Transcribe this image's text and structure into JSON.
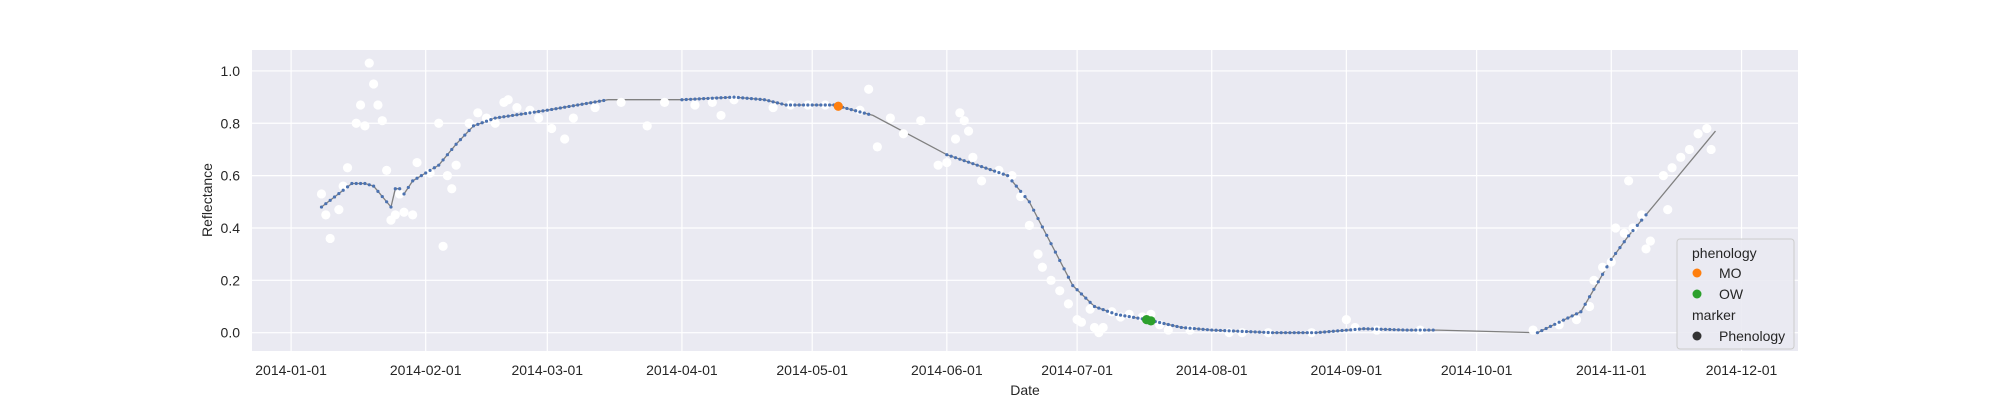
{
  "chart_data": {
    "type": "scatter",
    "xlabel": "Date",
    "ylabel": "Reflectance",
    "xlim": [
      "2013-12-23",
      "2014-12-14"
    ],
    "ylim": [
      -0.07,
      1.08
    ],
    "grid": true,
    "x_ticks": [
      "2014-01-01",
      "2014-02-01",
      "2014-03-01",
      "2014-04-01",
      "2014-05-01",
      "2014-06-01",
      "2014-07-01",
      "2014-08-01",
      "2014-09-01",
      "2014-10-01",
      "2014-11-01",
      "2014-12-01"
    ],
    "y_ticks": [
      "0.0",
      "0.2",
      "0.4",
      "0.6",
      "0.8",
      "1.0"
    ],
    "colors": {
      "plot_background": "#eaeaf2",
      "grid": "#ffffff",
      "observations": "#ffffff",
      "fit_line": "#808080",
      "fit_points": "#4c72b0",
      "MO": "#ff7f0e",
      "OW": "#2ca02c",
      "marker_legend": "#333333"
    },
    "legend": {
      "position": "lower-right",
      "phenology_title": "phenology",
      "marker_title": "marker",
      "entries": [
        {
          "label": "MO",
          "color": "#ff7f0e"
        },
        {
          "label": "OW",
          "color": "#2ca02c"
        },
        {
          "label": "Phenology",
          "color": "#333333"
        }
      ]
    },
    "observations": [
      {
        "x": "2014-01-08",
        "y": 0.53
      },
      {
        "x": "2014-01-09",
        "y": 0.45
      },
      {
        "x": "2014-01-10",
        "y": 0.36
      },
      {
        "x": "2014-01-12",
        "y": 0.47
      },
      {
        "x": "2014-01-13",
        "y": 0.56
      },
      {
        "x": "2014-01-14",
        "y": 0.63
      },
      {
        "x": "2014-01-16",
        "y": 0.8
      },
      {
        "x": "2014-01-17",
        "y": 0.87
      },
      {
        "x": "2014-01-18",
        "y": 0.79
      },
      {
        "x": "2014-01-19",
        "y": 1.03
      },
      {
        "x": "2014-01-20",
        "y": 0.95
      },
      {
        "x": "2014-01-21",
        "y": 0.87
      },
      {
        "x": "2014-01-22",
        "y": 0.81
      },
      {
        "x": "2014-01-23",
        "y": 0.62
      },
      {
        "x": "2014-01-24",
        "y": 0.43
      },
      {
        "x": "2014-01-25",
        "y": 0.45
      },
      {
        "x": "2014-01-26",
        "y": 0.53
      },
      {
        "x": "2014-01-27",
        "y": 0.46
      },
      {
        "x": "2014-01-29",
        "y": 0.45
      },
      {
        "x": "2014-01-30",
        "y": 0.65
      },
      {
        "x": "2014-02-02",
        "y": 0.61
      },
      {
        "x": "2014-02-04",
        "y": 0.8
      },
      {
        "x": "2014-02-05",
        "y": 0.33
      },
      {
        "x": "2014-02-06",
        "y": 0.6
      },
      {
        "x": "2014-02-07",
        "y": 0.55
      },
      {
        "x": "2014-02-08",
        "y": 0.64
      },
      {
        "x": "2014-02-11",
        "y": 0.8
      },
      {
        "x": "2014-02-13",
        "y": 0.84
      },
      {
        "x": "2014-02-15",
        "y": 0.82
      },
      {
        "x": "2014-02-17",
        "y": 0.8
      },
      {
        "x": "2014-02-19",
        "y": 0.88
      },
      {
        "x": "2014-02-20",
        "y": 0.89
      },
      {
        "x": "2014-02-22",
        "y": 0.86
      },
      {
        "x": "2014-02-25",
        "y": 0.85
      },
      {
        "x": "2014-02-27",
        "y": 0.82
      },
      {
        "x": "2014-03-02",
        "y": 0.78
      },
      {
        "x": "2014-03-05",
        "y": 0.74
      },
      {
        "x": "2014-03-07",
        "y": 0.82
      },
      {
        "x": "2014-03-12",
        "y": 0.86
      },
      {
        "x": "2014-03-18",
        "y": 0.88
      },
      {
        "x": "2014-03-24",
        "y": 0.79
      },
      {
        "x": "2014-03-28",
        "y": 0.88
      },
      {
        "x": "2014-04-04",
        "y": 0.87
      },
      {
        "x": "2014-04-08",
        "y": 0.88
      },
      {
        "x": "2014-04-10",
        "y": 0.83
      },
      {
        "x": "2014-04-13",
        "y": 0.89
      },
      {
        "x": "2014-04-22",
        "y": 0.86
      },
      {
        "x": "2014-04-26",
        "y": 0.87
      },
      {
        "x": "2014-04-30",
        "y": 0.87
      },
      {
        "x": "2014-05-04",
        "y": 0.87
      },
      {
        "x": "2014-05-12",
        "y": 0.85
      },
      {
        "x": "2014-05-14",
        "y": 0.93
      },
      {
        "x": "2014-05-16",
        "y": 0.71
      },
      {
        "x": "2014-05-19",
        "y": 0.82
      },
      {
        "x": "2014-05-22",
        "y": 0.76
      },
      {
        "x": "2014-05-26",
        "y": 0.81
      },
      {
        "x": "2014-05-30",
        "y": 0.64
      },
      {
        "x": "2014-06-01",
        "y": 0.65
      },
      {
        "x": "2014-06-03",
        "y": 0.74
      },
      {
        "x": "2014-06-04",
        "y": 0.84
      },
      {
        "x": "2014-06-05",
        "y": 0.81
      },
      {
        "x": "2014-06-06",
        "y": 0.77
      },
      {
        "x": "2014-06-07",
        "y": 0.67
      },
      {
        "x": "2014-06-09",
        "y": 0.58
      },
      {
        "x": "2014-06-13",
        "y": 0.62
      },
      {
        "x": "2014-06-16",
        "y": 0.6
      },
      {
        "x": "2014-06-18",
        "y": 0.52
      },
      {
        "x": "2014-06-20",
        "y": 0.41
      },
      {
        "x": "2014-06-22",
        "y": 0.3
      },
      {
        "x": "2014-06-23",
        "y": 0.25
      },
      {
        "x": "2014-06-25",
        "y": 0.2
      },
      {
        "x": "2014-06-27",
        "y": 0.16
      },
      {
        "x": "2014-06-29",
        "y": 0.11
      },
      {
        "x": "2014-07-01",
        "y": 0.05
      },
      {
        "x": "2014-07-02",
        "y": 0.04
      },
      {
        "x": "2014-07-04",
        "y": 0.09
      },
      {
        "x": "2014-07-05",
        "y": 0.02
      },
      {
        "x": "2014-07-06",
        "y": 0.0
      },
      {
        "x": "2014-07-07",
        "y": 0.02
      },
      {
        "x": "2014-07-09",
        "y": 0.08
      },
      {
        "x": "2014-07-11",
        "y": 0.06
      },
      {
        "x": "2014-07-13",
        "y": 0.07
      },
      {
        "x": "2014-07-16",
        "y": 0.06
      },
      {
        "x": "2014-07-18",
        "y": 0.07
      },
      {
        "x": "2014-07-20",
        "y": 0.03
      },
      {
        "x": "2014-07-22",
        "y": 0.01
      },
      {
        "x": "2014-07-27",
        "y": 0.01
      },
      {
        "x": "2014-08-05",
        "y": 0.0
      },
      {
        "x": "2014-08-08",
        "y": 0.0
      },
      {
        "x": "2014-08-14",
        "y": 0.0
      },
      {
        "x": "2014-08-24",
        "y": 0.0
      },
      {
        "x": "2014-09-01",
        "y": 0.05
      },
      {
        "x": "2014-09-03",
        "y": 0.02
      },
      {
        "x": "2014-09-08",
        "y": 0.01
      },
      {
        "x": "2014-09-18",
        "y": 0.01
      },
      {
        "x": "2014-10-14",
        "y": 0.01
      },
      {
        "x": "2014-10-20",
        "y": 0.03
      },
      {
        "x": "2014-10-24",
        "y": 0.05
      },
      {
        "x": "2014-10-27",
        "y": 0.1
      },
      {
        "x": "2014-10-28",
        "y": 0.2
      },
      {
        "x": "2014-10-30",
        "y": 0.25
      },
      {
        "x": "2014-11-01",
        "y": 0.27
      },
      {
        "x": "2014-11-02",
        "y": 0.4
      },
      {
        "x": "2014-11-04",
        "y": 0.38
      },
      {
        "x": "2014-11-05",
        "y": 0.58
      },
      {
        "x": "2014-11-06",
        "y": 0.4
      },
      {
        "x": "2014-11-08",
        "y": 0.45
      },
      {
        "x": "2014-11-09",
        "y": 0.32
      },
      {
        "x": "2014-11-10",
        "y": 0.35
      },
      {
        "x": "2014-11-13",
        "y": 0.6
      },
      {
        "x": "2014-11-14",
        "y": 0.47
      },
      {
        "x": "2014-11-15",
        "y": 0.63
      },
      {
        "x": "2014-11-17",
        "y": 0.67
      },
      {
        "x": "2014-11-19",
        "y": 0.7
      },
      {
        "x": "2014-11-21",
        "y": 0.76
      },
      {
        "x": "2014-11-23",
        "y": 0.78
      },
      {
        "x": "2014-11-24",
        "y": 0.7
      }
    ],
    "fitted": [
      {
        "x": "2014-01-08",
        "y": 0.48
      },
      {
        "x": "2014-01-15",
        "y": 0.57
      },
      {
        "x": "2014-01-18",
        "y": 0.57
      },
      {
        "x": "2014-01-20",
        "y": 0.56
      },
      {
        "x": "2014-01-24",
        "y": 0.48
      },
      {
        "x": "2014-01-25",
        "y": 0.55
      },
      {
        "x": "2014-01-26",
        "y": 0.55
      },
      {
        "x": "2014-01-27",
        "y": 0.53
      },
      {
        "x": "2014-01-29",
        "y": 0.58
      },
      {
        "x": "2014-02-01",
        "y": 0.61
      },
      {
        "x": "2014-02-04",
        "y": 0.64
      },
      {
        "x": "2014-02-08",
        "y": 0.72
      },
      {
        "x": "2014-02-12",
        "y": 0.79
      },
      {
        "x": "2014-02-17",
        "y": 0.82
      },
      {
        "x": "2014-03-01",
        "y": 0.85
      },
      {
        "x": "2014-03-15",
        "y": 0.89
      },
      {
        "x": "2014-04-01",
        "y": 0.89
      },
      {
        "x": "2014-04-13",
        "y": 0.9
      },
      {
        "x": "2014-04-20",
        "y": 0.89
      },
      {
        "x": "2014-04-25",
        "y": 0.87
      },
      {
        "x": "2014-05-06",
        "y": 0.87
      },
      {
        "x": "2014-05-15",
        "y": 0.83
      },
      {
        "x": "2014-06-01",
        "y": 0.68
      },
      {
        "x": "2014-06-15",
        "y": 0.6
      },
      {
        "x": "2014-06-20",
        "y": 0.5
      },
      {
        "x": "2014-06-30",
        "y": 0.18
      },
      {
        "x": "2014-07-05",
        "y": 0.1
      },
      {
        "x": "2014-07-10",
        "y": 0.07
      },
      {
        "x": "2014-07-17",
        "y": 0.05
      },
      {
        "x": "2014-07-25",
        "y": 0.02
      },
      {
        "x": "2014-08-01",
        "y": 0.01
      },
      {
        "x": "2014-08-15",
        "y": 0.0
      },
      {
        "x": "2014-08-25",
        "y": 0.0
      },
      {
        "x": "2014-09-05",
        "y": 0.015
      },
      {
        "x": "2014-09-15",
        "y": 0.01
      },
      {
        "x": "2014-09-22",
        "y": 0.01
      },
      {
        "x": "2014-10-15",
        "y": 0.0
      },
      {
        "x": "2014-10-25",
        "y": 0.08
      },
      {
        "x": "2014-11-01",
        "y": 0.28
      },
      {
        "x": "2014-11-05",
        "y": 0.37
      },
      {
        "x": "2014-11-10",
        "y": 0.47
      },
      {
        "x": "2014-11-25",
        "y": 0.77
      }
    ],
    "phenology_markers": [
      {
        "label": "MO",
        "x": "2014-05-07",
        "y": 0.865
      },
      {
        "label": "OW",
        "x": "2014-07-17",
        "y": 0.05
      },
      {
        "label": "OW",
        "x": "2014-07-18",
        "y": 0.045
      }
    ]
  }
}
